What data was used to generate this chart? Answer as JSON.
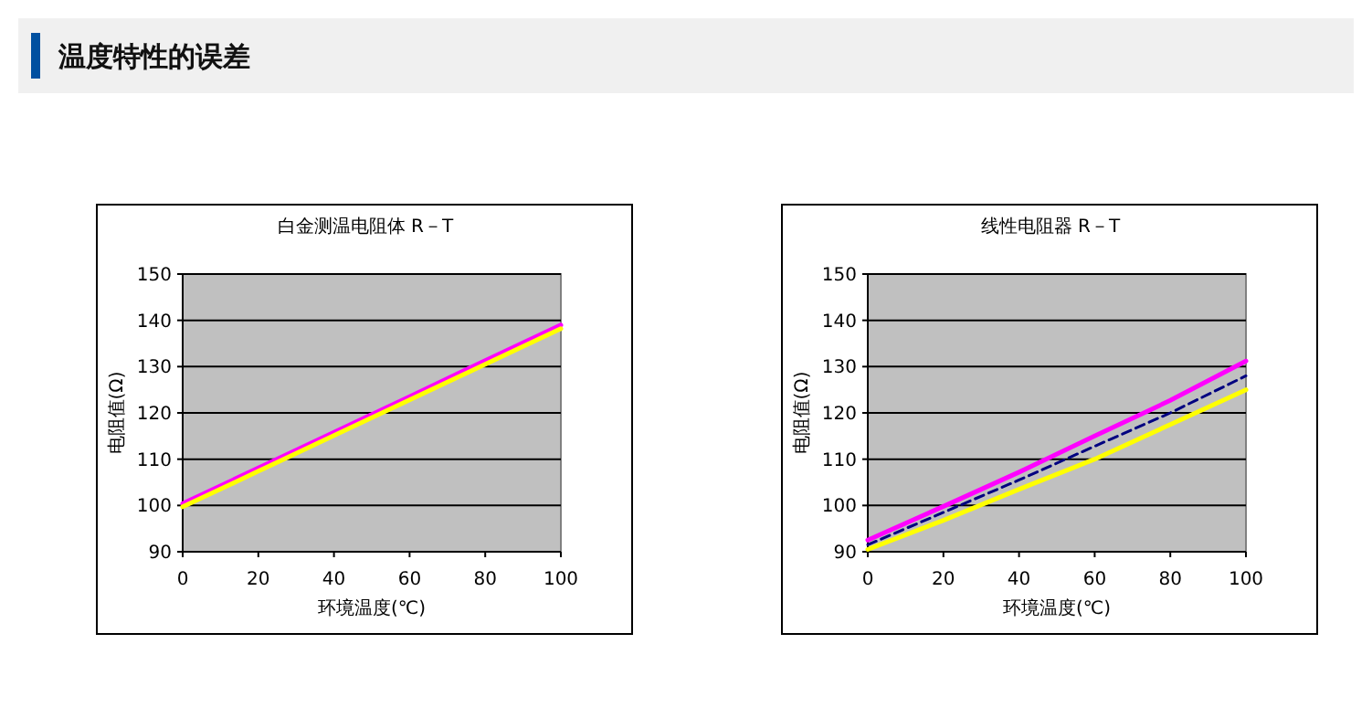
{
  "chart_data": [
    {
      "type": "other",
      "title": "温度特性的误差"
    },
    {
      "type": "line",
      "title": "白金测温电阻体 R－T",
      "xlabel": "环境温度(℃)",
      "ylabel": "电阻值(Ω)",
      "x": [
        0,
        20,
        40,
        60,
        80,
        100
      ],
      "xlim": [
        0,
        100
      ],
      "xticks": [
        0,
        20,
        40,
        60,
        80,
        100
      ],
      "ylim": [
        90,
        150
      ],
      "yticks": [
        90,
        100,
        110,
        120,
        130,
        140,
        150
      ],
      "grid": "y",
      "marker": "none",
      "series": [
        {
          "color": "#ff00ff",
          "values": [
            100.4,
            108.1,
            115.8,
            123.5,
            131.3,
            139
          ],
          "line_style": "solid"
        },
        {
          "color": "#ffff00",
          "values": [
            99.7,
            107.4,
            115.1,
            122.8,
            130.5,
            138.2
          ],
          "line_style": "solid"
        }
      ]
    },
    {
      "type": "line",
      "title": "线性电阻器 R－T",
      "xlabel": "环境温度(℃)",
      "ylabel": "电阻值(Ω)",
      "x": [
        0,
        20,
        40,
        60,
        80,
        100
      ],
      "xlim": [
        0,
        100
      ],
      "xticks": [
        0,
        20,
        40,
        60,
        80,
        100
      ],
      "ylim": [
        90,
        150
      ],
      "yticks": [
        90,
        100,
        110,
        120,
        130,
        140,
        150
      ],
      "grid": "y",
      "marker": "none",
      "series": [
        {
          "color": "#ff00ff",
          "values": [
            92.5,
            99.8,
            107.2,
            115,
            122.7,
            131.2
          ],
          "line_style": "solid"
        },
        {
          "color": "#000080",
          "values": [
            91.5,
            98.5,
            105.5,
            112.8,
            120,
            128
          ],
          "line_style": "dashed"
        },
        {
          "color": "#ffff00",
          "values": [
            90.5,
            96.8,
            103.5,
            110,
            117.5,
            125
          ],
          "line_style": "solid"
        }
      ]
    }
  ]
}
